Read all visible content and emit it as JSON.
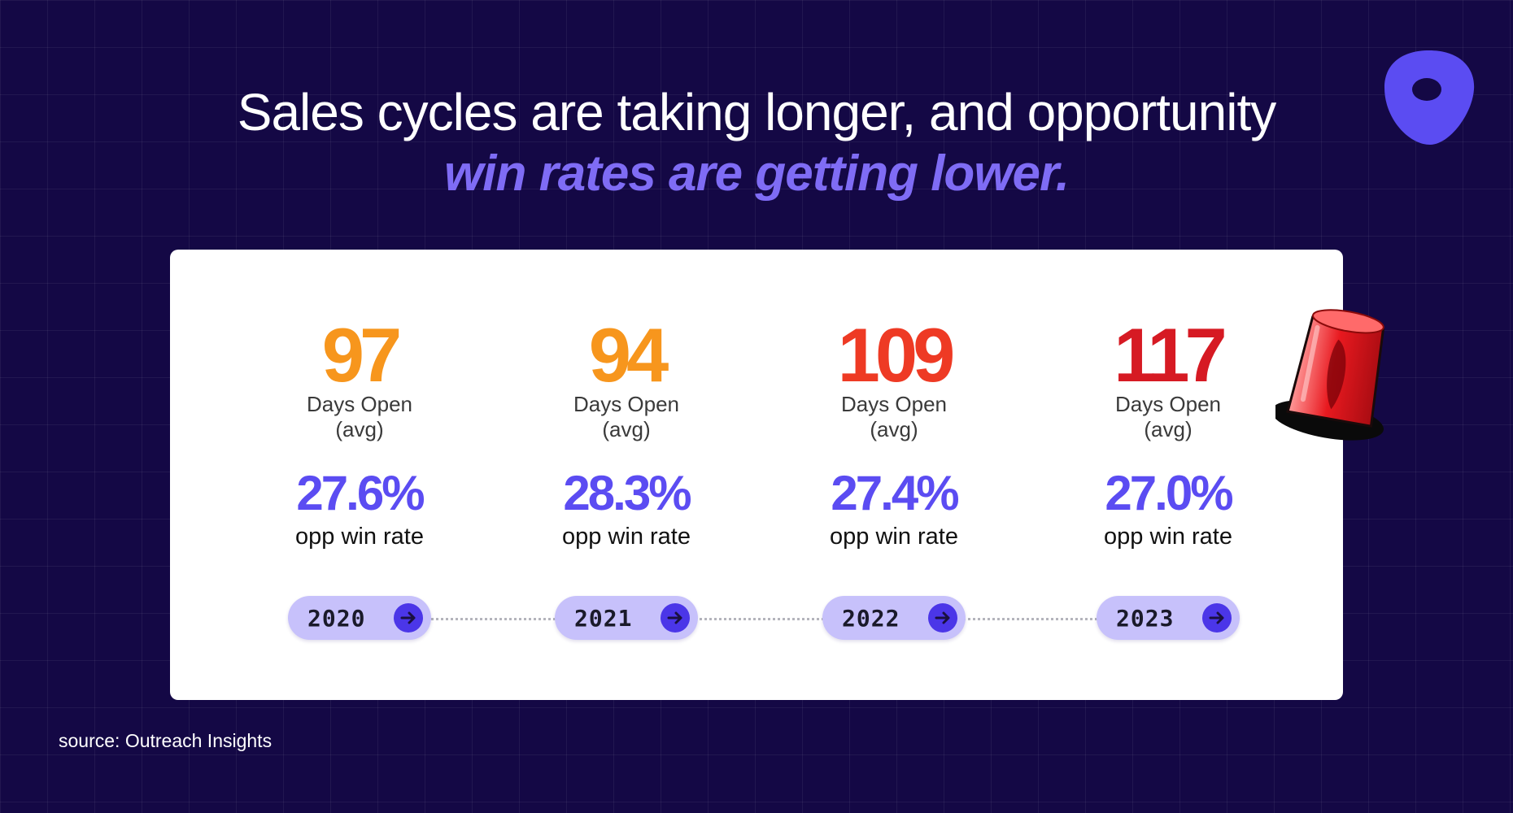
{
  "headline": {
    "line1": "Sales cycles are taking longer, and opportunity",
    "line2": "win rates are getting lower."
  },
  "stats": [
    {
      "days": "97",
      "days_label_1": "Days Open",
      "days_label_2": "(avg)",
      "rate": "27.6%",
      "rate_label": "opp win rate",
      "year": "2020",
      "color": "#f7961d"
    },
    {
      "days": "94",
      "days_label_1": "Days Open",
      "days_label_2": "(avg)",
      "rate": "28.3%",
      "rate_label": "opp win rate",
      "year": "2021",
      "color": "#f7961d"
    },
    {
      "days": "109",
      "days_label_1": "Days Open",
      "days_label_2": "(avg)",
      "rate": "27.4%",
      "rate_label": "opp win rate",
      "year": "2022",
      "color": "#ee3a24"
    },
    {
      "days": "117",
      "days_label_1": "Days Open",
      "days_label_2": "(avg)",
      "rate": "27.0%",
      "rate_label": "opp win rate",
      "year": "2023",
      "color": "#d61a23"
    }
  ],
  "source": "source: Outreach Insights",
  "colors": {
    "background": "#140845",
    "accent": "#5b4cf2",
    "pill": "#c7c1fb",
    "arrow": "#4b36e8"
  },
  "icons": {
    "logo": "outreach-logo-icon",
    "alarm": "siren-icon",
    "arrow": "arrow-right-icon"
  }
}
